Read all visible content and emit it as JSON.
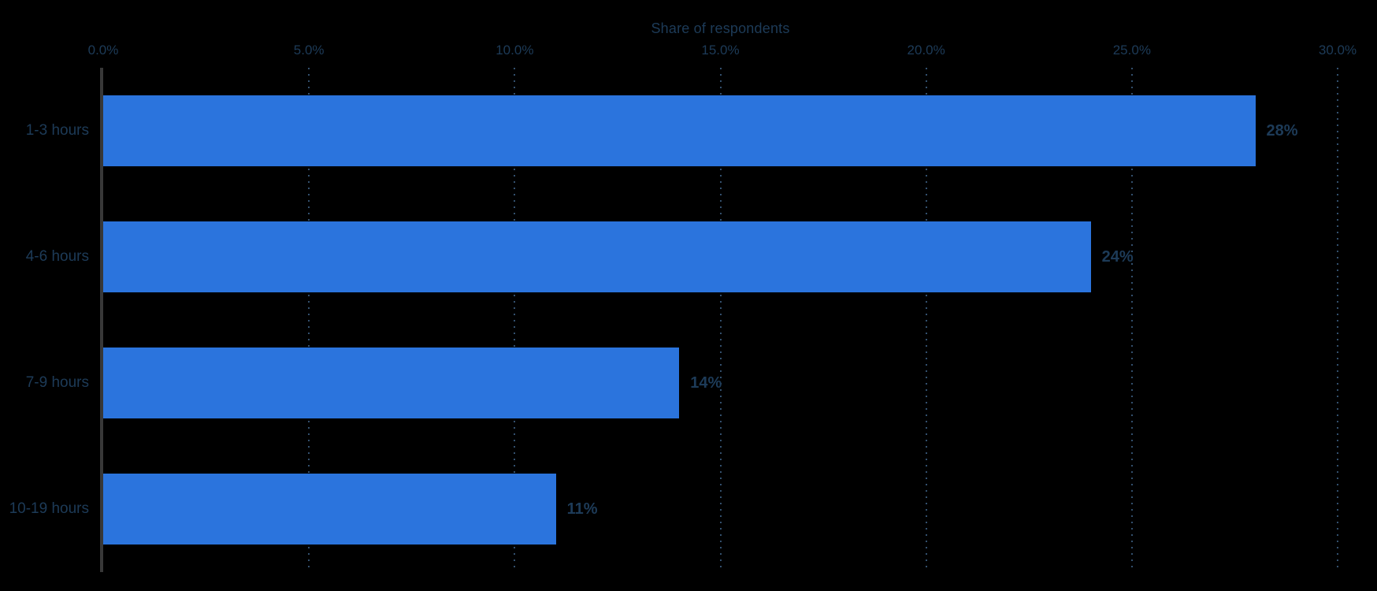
{
  "chart_data": {
    "type": "bar",
    "orientation": "horizontal",
    "title": "Share of respondents",
    "categories": [
      "1-3 hours",
      "4-6 hours",
      "7-9 hours",
      "10-19 hours"
    ],
    "values": [
      28,
      24,
      14,
      11
    ],
    "value_labels": [
      "28%",
      "24%",
      "14%",
      "11%"
    ],
    "x_ticks": [
      "0.0%",
      "5.0%",
      "10.0%",
      "15.0%",
      "20.0%",
      "25.0%",
      "30.0%"
    ],
    "x_tick_values": [
      0,
      5,
      10,
      15,
      20,
      25,
      30
    ],
    "xlim": [
      0,
      30
    ],
    "xlabel": "",
    "ylabel": "",
    "grid": "dotted-vertical",
    "legend": "none",
    "colors": {
      "bar": "#2B74DD",
      "text": "#1D3B58",
      "gridline": "#33506E",
      "axis": "#383838",
      "background": "#000000"
    }
  }
}
